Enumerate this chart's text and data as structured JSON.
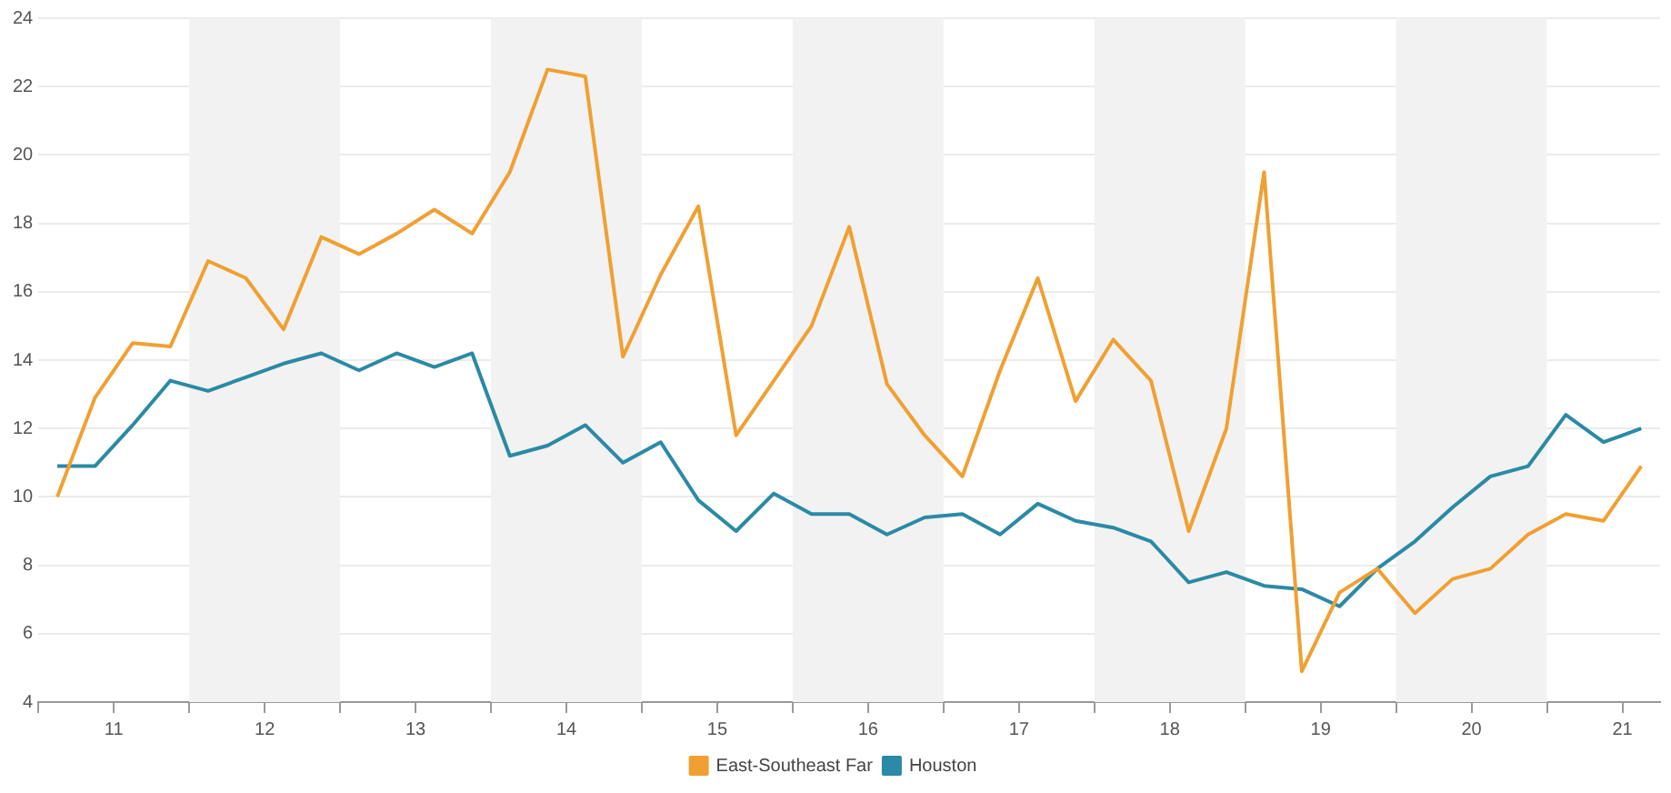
{
  "chart_data": {
    "type": "line",
    "x": [
      10.625,
      10.875,
      11.125,
      11.375,
      11.625,
      11.875,
      12.125,
      12.375,
      12.625,
      12.875,
      13.125,
      13.375,
      13.625,
      13.875,
      14.125,
      14.375,
      14.625,
      14.875,
      15.125,
      15.375,
      15.625,
      15.875,
      16.125,
      16.375,
      16.625,
      16.875,
      17.125,
      17.375,
      17.625,
      17.875,
      18.125,
      18.375,
      18.625,
      18.875,
      19.125,
      19.375,
      19.625,
      19.875,
      20.125,
      20.375,
      20.625,
      20.875,
      21.125
    ],
    "series": [
      {
        "name": "East-Southeast Far",
        "color": "#f0a032",
        "values": [
          10.0,
          12.9,
          14.5,
          14.4,
          16.9,
          16.4,
          14.9,
          17.6,
          17.1,
          17.7,
          18.4,
          17.7,
          19.5,
          22.5,
          22.3,
          14.1,
          16.5,
          18.5,
          11.8,
          13.4,
          15.0,
          17.9,
          13.3,
          11.8,
          10.6,
          13.7,
          16.4,
          12.8,
          14.6,
          13.4,
          9.0,
          12.0,
          19.5,
          4.9,
          7.2,
          7.9,
          6.6,
          7.6,
          7.9,
          8.9,
          9.5,
          9.3,
          10.9
        ]
      },
      {
        "name": "Houston",
        "color": "#2b8aa5",
        "values": [
          10.9,
          10.9,
          12.1,
          13.4,
          13.1,
          13.5,
          13.9,
          14.2,
          13.7,
          14.2,
          13.8,
          14.2,
          11.2,
          11.5,
          12.1,
          11.0,
          11.6,
          9.9,
          9.0,
          10.1,
          9.5,
          9.5,
          8.9,
          9.4,
          9.5,
          8.9,
          9.8,
          9.3,
          9.1,
          8.7,
          7.5,
          7.8,
          7.4,
          7.3,
          6.8,
          7.9,
          8.7,
          9.7,
          10.6,
          10.9,
          12.4,
          11.6,
          12.0
        ]
      }
    ],
    "xlim": [
      10.5,
      21.25
    ],
    "xticks": [
      {
        "value": 10.5,
        "label": null
      },
      11,
      {
        "value": 11.5,
        "label": null
      },
      12,
      {
        "value": 12.5,
        "label": null
      },
      13,
      {
        "value": 13.5,
        "label": null
      },
      14,
      {
        "value": 14.5,
        "label": null
      },
      15,
      {
        "value": 15.5,
        "label": null
      },
      16,
      {
        "value": 16.5,
        "label": null
      },
      17,
      {
        "value": 17.5,
        "label": null
      },
      18,
      {
        "value": 18.5,
        "label": null
      },
      19,
      {
        "value": 19.5,
        "label": null
      },
      20,
      {
        "value": 20.5,
        "label": null
      },
      21
    ],
    "ylim": [
      4,
      24
    ],
    "yticks": [
      4,
      6,
      8,
      10,
      12,
      14,
      16,
      18,
      20,
      22,
      24
    ],
    "bands": [
      {
        "axis": "x",
        "from": 11.5,
        "to": 12.5,
        "color": "#f2f2f2"
      },
      {
        "axis": "x",
        "from": 13.5,
        "to": 14.5,
        "color": "#f2f2f2"
      },
      {
        "axis": "x",
        "from": 15.5,
        "to": 16.5,
        "color": "#f2f2f2"
      },
      {
        "axis": "x",
        "from": 17.5,
        "to": 18.5,
        "color": "#f2f2f2"
      },
      {
        "axis": "x",
        "from": 19.5,
        "to": 20.5,
        "color": "#f2f2f2"
      }
    ],
    "grid": "y",
    "legend": "bottom",
    "marker": "none",
    "line_style": "solid"
  }
}
